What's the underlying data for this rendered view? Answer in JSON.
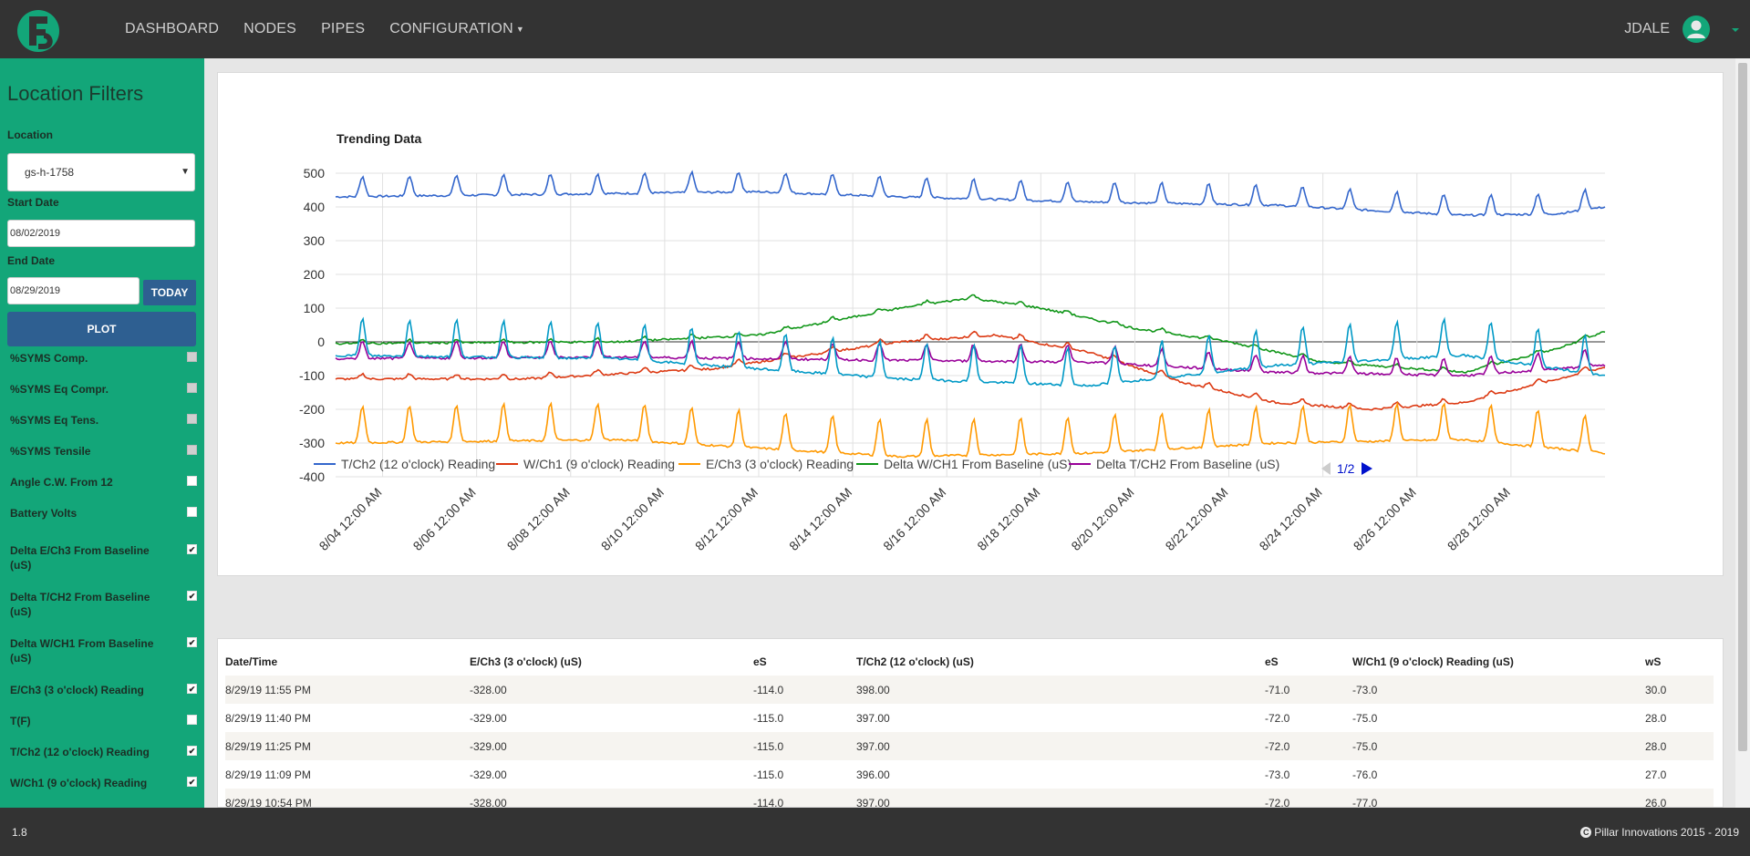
{
  "nav": {
    "items": [
      "DASHBOARD",
      "NODES",
      "PIPES",
      "CONFIGURATION"
    ],
    "user": "JDALE",
    "logo_letter": "S"
  },
  "sidebar": {
    "title": "Location Filters",
    "location_label": "Location",
    "location_value": "gs-h-1758",
    "start_label": "Start Date",
    "start_value": "08/02/2019",
    "end_label": "End Date",
    "end_value": "08/29/2019",
    "today_button": "TODAY",
    "plot_button": "PLOT",
    "filters": [
      {
        "label": "%SYMS Comp.",
        "checked": false,
        "enabled": false
      },
      {
        "label": "%SYMS Eq Compr.",
        "checked": false,
        "enabled": false
      },
      {
        "label": "%SYMS Eq Tens.",
        "checked": false,
        "enabled": false
      },
      {
        "label": "%SYMS Tensile",
        "checked": false,
        "enabled": false
      },
      {
        "label": "Angle C.W. From 12",
        "checked": false,
        "enabled": true
      },
      {
        "label": "Battery Volts",
        "checked": false,
        "enabled": true
      },
      {
        "label": "Delta E/Ch3 From Baseline (uS)",
        "checked": true,
        "enabled": true
      },
      {
        "label": "Delta T/CH2 From Baseline (uS)",
        "checked": true,
        "enabled": true
      },
      {
        "label": "Delta W/CH1 From Baseline (uS)",
        "checked": true,
        "enabled": true
      },
      {
        "label": "E/Ch3 (3 o'clock) Reading",
        "checked": true,
        "enabled": true
      },
      {
        "label": "T(F)",
        "checked": false,
        "enabled": true
      },
      {
        "label": "T/Ch2 (12 o'clock) Reading",
        "checked": true,
        "enabled": true
      },
      {
        "label": "W/Ch1 (9 o'clock) Reading",
        "checked": true,
        "enabled": true
      }
    ]
  },
  "chart_data": {
    "type": "line",
    "title": "Trending Data",
    "xlabel": "",
    "ylabel": "",
    "ylim": [
      -400,
      500
    ],
    "yticks": [
      500,
      400,
      300,
      200,
      100,
      0,
      -100,
      -200,
      -300,
      -400
    ],
    "x_start": "8/03 00:00",
    "x_end": "8/29 23:55",
    "x_ticks": [
      "8/04 12:00 AM",
      "8/06 12:00 AM",
      "8/08 12:00 AM",
      "8/10 12:00 AM",
      "8/12 12:00 AM",
      "8/14 12:00 AM",
      "8/16 12:00 AM",
      "8/18 12:00 AM",
      "8/20 12:00 AM",
      "8/22 12:00 AM",
      "8/24 12:00 AM",
      "8/26 12:00 AM",
      "8/28 12:00 AM"
    ],
    "grid": true,
    "legend_position": "bottom",
    "legend_page": "1/2",
    "series": [
      {
        "name": "T/Ch2 (12 o'clock) Reading",
        "color": "#3366cc",
        "trend": [
          [
            0,
            430
          ],
          [
            6,
            440
          ],
          [
            9,
            445
          ],
          [
            12,
            430
          ],
          [
            16,
            415
          ],
          [
            20,
            405
          ],
          [
            24,
            375
          ],
          [
            26,
            380
          ],
          [
            27,
            400
          ]
        ],
        "daily_spike": 60,
        "noise": 6
      },
      {
        "name": "W/Ch1 (9 o'clock) Reading",
        "color": "#dc3912",
        "trend": [
          [
            0,
            -110
          ],
          [
            4,
            -110
          ],
          [
            8,
            -80
          ],
          [
            12,
            0
          ],
          [
            14,
            20
          ],
          [
            16,
            -30
          ],
          [
            18,
            -120
          ],
          [
            20,
            -180
          ],
          [
            22,
            -200
          ],
          [
            24,
            -180
          ],
          [
            27,
            -75
          ]
        ],
        "daily_spike": 15,
        "noise": 6
      },
      {
        "name": "E/Ch3 (3 o'clock) Reading",
        "color": "#ff9900",
        "trend": [
          [
            0,
            -300
          ],
          [
            6,
            -290
          ],
          [
            12,
            -340
          ],
          [
            16,
            -330
          ],
          [
            20,
            -300
          ],
          [
            24,
            -290
          ],
          [
            27,
            -330
          ]
        ],
        "daily_spike": 110,
        "noise": 6
      },
      {
        "name": "Delta W/CH1 From Baseline (uS)",
        "color": "#109618",
        "trend": [
          [
            0,
            -5
          ],
          [
            6,
            0
          ],
          [
            9,
            20
          ],
          [
            12,
            100
          ],
          [
            13.5,
            130
          ],
          [
            15,
            100
          ],
          [
            17,
            40
          ],
          [
            19,
            0
          ],
          [
            21,
            -60
          ],
          [
            24,
            -90
          ],
          [
            26,
            -20
          ],
          [
            27,
            30
          ]
        ],
        "daily_spike": 10,
        "noise": 6
      },
      {
        "name": "Delta T/CH2 From Baseline (uS)",
        "color": "#990099",
        "trend": [
          [
            0,
            -50
          ],
          [
            6,
            -45
          ],
          [
            12,
            -55
          ],
          [
            16,
            -60
          ],
          [
            20,
            -90
          ],
          [
            24,
            -100
          ],
          [
            27,
            -70
          ]
        ],
        "daily_spike": 50,
        "noise": 7
      },
      {
        "name": "Delta E/Ch3 From Baseline (uS)",
        "color": "#0099c6",
        "trend": [
          [
            0,
            -40
          ],
          [
            6,
            -50
          ],
          [
            12,
            -110
          ],
          [
            16,
            -130
          ],
          [
            20,
            -70
          ],
          [
            24,
            -40
          ],
          [
            27,
            -100
          ]
        ],
        "daily_spike": 110,
        "noise": 7
      }
    ]
  },
  "table": {
    "headers": [
      "Date/Time",
      "E/Ch3 (3 o'clock) (uS)",
      "eS",
      "T/Ch2 (12 o'clock) (uS)",
      "eS",
      "W/Ch1 (9 o'clock) Reading (uS)",
      "wS"
    ],
    "rows": [
      [
        "8/29/19 11:55 PM",
        "-328.00",
        "-114.0",
        "398.00",
        "-71.0",
        "-73.0",
        "30.0"
      ],
      [
        "8/29/19 11:40 PM",
        "-329.00",
        "-115.0",
        "397.00",
        "-72.0",
        "-75.0",
        "28.0"
      ],
      [
        "8/29/19 11:25 PM",
        "-329.00",
        "-115.0",
        "397.00",
        "-72.0",
        "-75.0",
        "28.0"
      ],
      [
        "8/29/19 11:09 PM",
        "-329.00",
        "-115.0",
        "396.00",
        "-73.0",
        "-76.0",
        "27.0"
      ],
      [
        "8/29/19 10:54 PM",
        "-328.00",
        "-114.0",
        "397.00",
        "-72.0",
        "-77.0",
        "26.0"
      ]
    ]
  },
  "footer": {
    "version": "1.8",
    "copyright_symbol": "C",
    "copyright": "Pillar Innovations 2015 - 2019"
  }
}
